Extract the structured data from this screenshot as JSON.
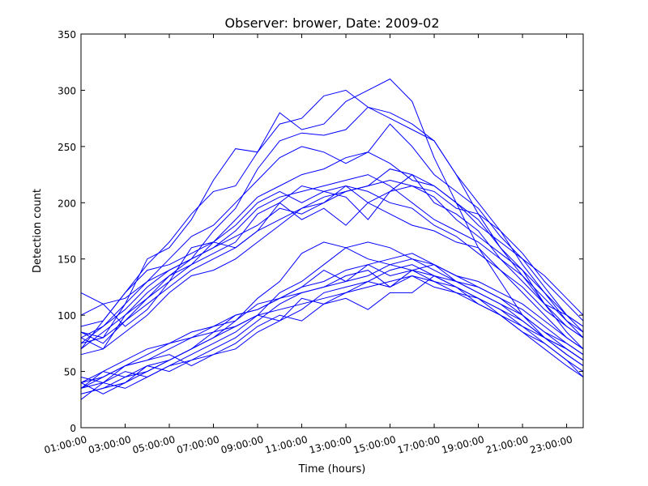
{
  "chart_data": {
    "type": "line",
    "title": "Observer: brower, Date: 2009-02",
    "xlabel": "Time (hours)",
    "ylabel": "Detection count",
    "ylim": [
      0,
      350
    ],
    "xlim": [
      1,
      23.75
    ],
    "grid": false,
    "legend": "none",
    "line_color": "#0000ff",
    "x_tick_labels": [
      "01:00:00",
      "03:00:00",
      "05:00:00",
      "07:00:00",
      "09:00:00",
      "11:00:00",
      "13:00:00",
      "15:00:00",
      "17:00:00",
      "19:00:00",
      "21:00:00",
      "23:00:00"
    ],
    "y_ticks": [
      0,
      50,
      100,
      150,
      200,
      250,
      300,
      350
    ],
    "x": [
      1,
      2,
      3,
      4,
      5,
      6,
      7,
      8,
      9,
      10,
      11,
      12,
      13,
      14,
      15,
      16,
      17,
      18,
      19,
      20,
      21,
      22,
      23,
      23.75
    ],
    "series": [
      {
        "values": [
          70,
          95,
          120,
          145,
          165,
          190,
          210,
          215,
          245,
          280,
          265,
          270,
          290,
          300,
          310,
          290,
          240,
          200,
          160,
          130,
          100,
          80,
          70,
          60
        ]
      },
      {
        "values": [
          75,
          90,
          110,
          150,
          160,
          185,
          220,
          248,
          245,
          270,
          275,
          295,
          300,
          285,
          280,
          270,
          255,
          225,
          200,
          175,
          145,
          120,
          95,
          80
        ]
      },
      {
        "values": [
          80,
          70,
          100,
          120,
          135,
          150,
          175,
          195,
          230,
          255,
          262,
          260,
          265,
          285,
          275,
          265,
          255,
          225,
          190,
          160,
          140,
          110,
          85,
          70
        ]
      },
      {
        "values": [
          85,
          80,
          110,
          130,
          150,
          170,
          180,
          200,
          220,
          240,
          250,
          245,
          235,
          245,
          270,
          250,
          225,
          210,
          195,
          170,
          150,
          125,
          100,
          90
        ]
      },
      {
        "values": [
          90,
          95,
          120,
          140,
          145,
          155,
          165,
          185,
          205,
          215,
          225,
          230,
          240,
          245,
          235,
          220,
          215,
          200,
          185,
          160,
          135,
          110,
          90,
          80
        ]
      },
      {
        "values": [
          100,
          110,
          115,
          130,
          140,
          150,
          160,
          175,
          195,
          205,
          210,
          215,
          220,
          225,
          215,
          200,
          185,
          175,
          165,
          150,
          130,
          110,
          100,
          90
        ]
      },
      {
        "values": [
          120,
          110,
          90,
          105,
          130,
          160,
          165,
          180,
          200,
          210,
          200,
          210,
          205,
          185,
          210,
          215,
          210,
          195,
          190,
          175,
          155,
          130,
          110,
          95
        ]
      },
      {
        "values": [
          80,
          90,
          105,
          125,
          140,
          150,
          160,
          170,
          180,
          195,
          190,
          200,
          210,
          215,
          230,
          225,
          215,
          200,
          180,
          165,
          150,
          135,
          115,
          100
        ]
      },
      {
        "values": [
          70,
          85,
          100,
          115,
          130,
          145,
          155,
          165,
          190,
          200,
          215,
          210,
          215,
          200,
          210,
          225,
          200,
          190,
          175,
          150,
          135,
          115,
          95,
          85
        ]
      },
      {
        "values": [
          75,
          80,
          95,
          110,
          125,
          140,
          150,
          160,
          175,
          185,
          195,
          205,
          210,
          215,
          220,
          215,
          205,
          185,
          170,
          155,
          140,
          120,
          100,
          85
        ]
      },
      {
        "values": [
          85,
          75,
          95,
          115,
          135,
          145,
          165,
          160,
          175,
          200,
          185,
          195,
          180,
          200,
          190,
          180,
          175,
          165,
          160,
          140,
          125,
          105,
          90,
          80
        ]
      },
      {
        "values": [
          65,
          70,
          85,
          100,
          120,
          135,
          140,
          150,
          165,
          180,
          195,
          200,
          215,
          210,
          200,
          195,
          180,
          170,
          155,
          140,
          120,
          100,
          80,
          70
        ]
      },
      {
        "values": [
          30,
          35,
          45,
          55,
          60,
          70,
          80,
          95,
          115,
          130,
          155,
          165,
          160,
          150,
          145,
          140,
          135,
          125,
          115,
          100,
          90,
          75,
          60,
          50
        ]
      },
      {
        "values": [
          35,
          40,
          50,
          45,
          55,
          65,
          75,
          85,
          100,
          120,
          130,
          145,
          160,
          165,
          160,
          150,
          145,
          130,
          120,
          110,
          95,
          80,
          65,
          55
        ]
      },
      {
        "values": [
          40,
          30,
          40,
          50,
          60,
          70,
          85,
          100,
          105,
          115,
          125,
          140,
          130,
          145,
          135,
          140,
          145,
          135,
          125,
          115,
          100,
          85,
          70,
          60
        ]
      },
      {
        "values": [
          25,
          40,
          35,
          45,
          55,
          60,
          70,
          80,
          95,
          110,
          120,
          125,
          135,
          140,
          125,
          135,
          130,
          120,
          110,
          100,
          85,
          75,
          60,
          45
        ]
      },
      {
        "values": [
          35,
          45,
          55,
          60,
          65,
          55,
          65,
          75,
          90,
          100,
          95,
          110,
          120,
          125,
          130,
          135,
          125,
          120,
          115,
          105,
          90,
          80,
          65,
          55
        ]
      },
      {
        "values": [
          40,
          50,
          45,
          50,
          60,
          70,
          80,
          90,
          100,
          105,
          110,
          115,
          120,
          130,
          125,
          140,
          130,
          125,
          110,
          100,
          85,
          70,
          55,
          45
        ]
      },
      {
        "values": [
          30,
          35,
          40,
          55,
          50,
          60,
          65,
          70,
          85,
          95,
          115,
          110,
          115,
          105,
          120,
          120,
          135,
          125,
          115,
          105,
          95,
          80,
          70,
          60
        ]
      },
      {
        "values": [
          45,
          40,
          55,
          65,
          75,
          80,
          85,
          90,
          100,
          95,
          105,
          120,
          125,
          130,
          140,
          145,
          135,
          130,
          120,
          110,
          100,
          85,
          75,
          65
        ]
      },
      {
        "values": [
          35,
          50,
          60,
          70,
          75,
          85,
          90,
          100,
          105,
          115,
          120,
          125,
          130,
          135,
          145,
          150,
          140,
          130,
          125,
          115,
          105,
          90,
          75,
          65
        ]
      },
      {
        "values": [
          40,
          45,
          55,
          60,
          70,
          80,
          90,
          95,
          110,
          115,
          125,
          130,
          140,
          145,
          150,
          155,
          145,
          135,
          130,
          120,
          110,
          95,
          80,
          70
        ]
      }
    ]
  }
}
